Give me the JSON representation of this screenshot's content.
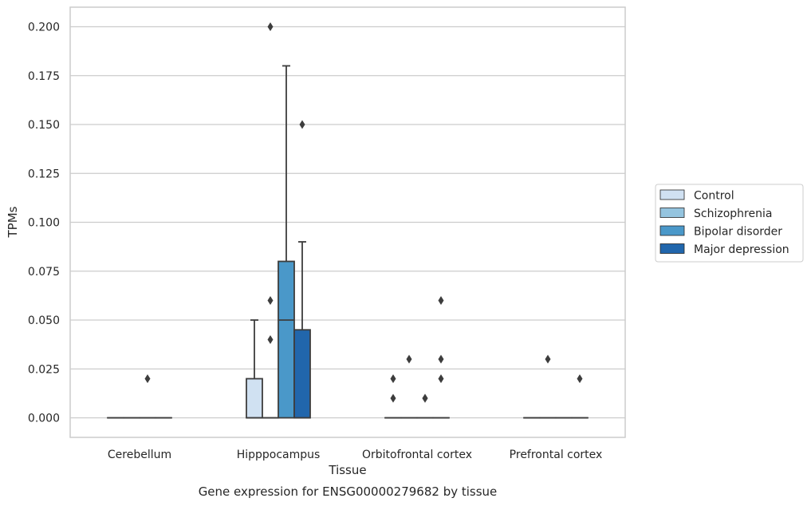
{
  "chart_data": {
    "type": "box",
    "title": "",
    "caption": "Gene expression for ENSG00000279682 by tissue",
    "xlabel": "Tissue",
    "ylabel": "TPMs",
    "ylim": [
      -0.01,
      0.21
    ],
    "yticks": [
      "0.000",
      "0.025",
      "0.050",
      "0.075",
      "0.100",
      "0.125",
      "0.150",
      "0.175",
      "0.200"
    ],
    "grid": "horizontal",
    "legend_position": "right",
    "categories": [
      "Cerebellum",
      "Hipppocampus",
      "Orbitofrontal cortex",
      "Prefrontal cortex"
    ],
    "series": [
      {
        "name": "Control",
        "color": "#d0e1f2",
        "boxes": [
          {
            "whisker_low": 0,
            "q1": 0,
            "median": 0,
            "q3": 0,
            "whisker_high": 0,
            "outliers": []
          },
          {
            "whisker_low": 0,
            "q1": 0,
            "median": 0,
            "q3": 0.02,
            "whisker_high": 0.05,
            "outliers": []
          },
          {
            "whisker_low": 0,
            "q1": 0,
            "median": 0,
            "q3": 0,
            "whisker_high": 0,
            "outliers": [
              0.01,
              0.02
            ]
          },
          {
            "whisker_low": 0,
            "q1": 0,
            "median": 0,
            "q3": 0,
            "whisker_high": 0,
            "outliers": []
          }
        ]
      },
      {
        "name": "Schizophrenia",
        "color": "#94c4df",
        "boxes": [
          {
            "whisker_low": 0,
            "q1": 0,
            "median": 0,
            "q3": 0,
            "whisker_high": 0,
            "outliers": []
          },
          {
            "whisker_low": 0,
            "q1": 0,
            "median": 0,
            "q3": 0,
            "whisker_high": 0,
            "outliers": [
              0.04,
              0.06,
              0.2
            ]
          },
          {
            "whisker_low": 0,
            "q1": 0,
            "median": 0,
            "q3": 0,
            "whisker_high": 0,
            "outliers": [
              0.03
            ]
          },
          {
            "whisker_low": 0,
            "q1": 0,
            "median": 0,
            "q3": 0,
            "whisker_high": 0,
            "outliers": [
              0.03
            ]
          }
        ]
      },
      {
        "name": "Bipolar disorder",
        "color": "#4a98c9",
        "boxes": [
          {
            "whisker_low": 0,
            "q1": 0,
            "median": 0,
            "q3": 0,
            "whisker_high": 0,
            "outliers": [
              0.02
            ]
          },
          {
            "whisker_low": 0,
            "q1": 0,
            "median": 0.05,
            "q3": 0.08,
            "whisker_high": 0.18,
            "outliers": []
          },
          {
            "whisker_low": 0,
            "q1": 0,
            "median": 0,
            "q3": 0,
            "whisker_high": 0,
            "outliers": [
              0.01,
              0.01
            ]
          },
          {
            "whisker_low": 0,
            "q1": 0,
            "median": 0,
            "q3": 0,
            "whisker_high": 0,
            "outliers": []
          }
        ]
      },
      {
        "name": "Major depression",
        "color": "#2166ac",
        "boxes": [
          {
            "whisker_low": 0,
            "q1": 0,
            "median": 0,
            "q3": 0,
            "whisker_high": 0,
            "outliers": []
          },
          {
            "whisker_low": 0,
            "q1": 0,
            "median": 0,
            "q3": 0.045,
            "whisker_high": 0.09,
            "outliers": [
              0.15
            ]
          },
          {
            "whisker_low": 0,
            "q1": 0,
            "median": 0,
            "q3": 0,
            "whisker_high": 0,
            "outliers": [
              0.02,
              0.03,
              0.06
            ]
          },
          {
            "whisker_low": 0,
            "q1": 0,
            "median": 0,
            "q3": 0,
            "whisker_high": 0,
            "outliers": [
              0.02
            ]
          }
        ]
      }
    ]
  }
}
